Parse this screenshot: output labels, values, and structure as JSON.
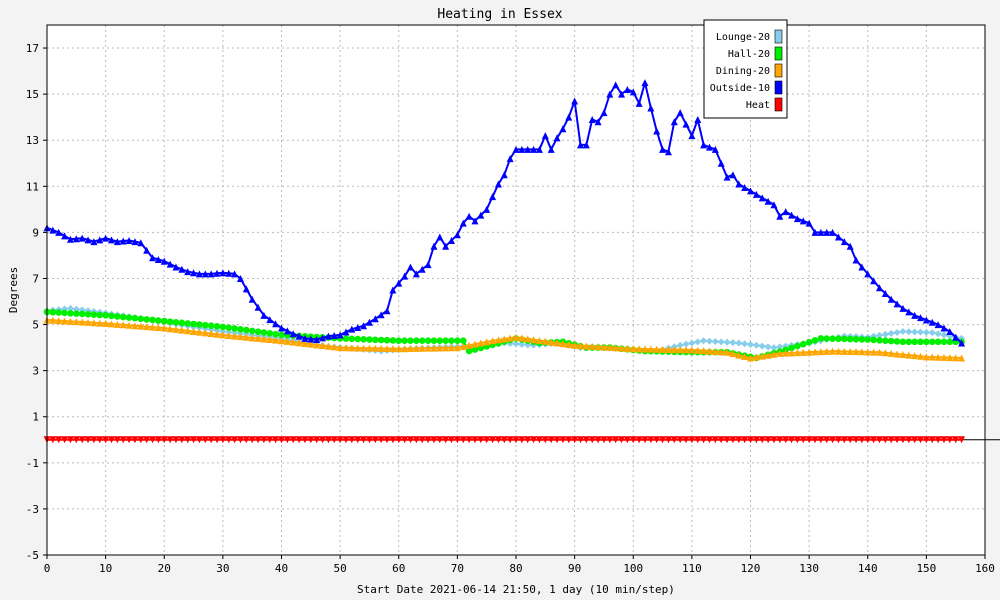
{
  "chart_data": {
    "type": "line",
    "title": "Heating in Essex",
    "xlabel": "Start Date 2021-06-14 21:50, 1 day (10 min/step)",
    "ylabel": "Degrees",
    "xlim": [
      0,
      160
    ],
    "ylim": [
      -5,
      18
    ],
    "x_ticks": [
      0,
      10,
      20,
      30,
      40,
      50,
      60,
      70,
      80,
      90,
      100,
      110,
      120,
      130,
      140,
      150,
      160
    ],
    "y_ticks": [
      -5,
      -3,
      -1,
      1,
      3,
      5,
      7,
      9,
      11,
      13,
      15,
      17
    ],
    "grid": true,
    "legend_position": "top-right",
    "series": [
      {
        "name": "Lounge-20",
        "color": "#87ceeb",
        "marker": "diamond",
        "points": [
          [
            0,
            5.6
          ],
          [
            4,
            5.7
          ],
          [
            10,
            5.5
          ],
          [
            20,
            5.1
          ],
          [
            30,
            4.7
          ],
          [
            40,
            4.4
          ],
          [
            48,
            4.05
          ],
          [
            57,
            3.85
          ],
          [
            62,
            3.95
          ],
          [
            70,
            4.05
          ],
          [
            74,
            4.05
          ],
          [
            78,
            4.2
          ],
          [
            83,
            4.1
          ],
          [
            87,
            4.2
          ],
          [
            91,
            4.0
          ],
          [
            96,
            4.0
          ],
          [
            104,
            3.85
          ],
          [
            108,
            4.1
          ],
          [
            112,
            4.3
          ],
          [
            118,
            4.2
          ],
          [
            124,
            4.0
          ],
          [
            130,
            4.2
          ],
          [
            136,
            4.5
          ],
          [
            140,
            4.45
          ],
          [
            146,
            4.7
          ],
          [
            151,
            4.65
          ],
          [
            156,
            4.4
          ]
        ]
      },
      {
        "name": "Hall-20",
        "color": "#00ee00",
        "marker": "circle",
        "points": [
          [
            0,
            5.55
          ],
          [
            10,
            5.4
          ],
          [
            20,
            5.15
          ],
          [
            30,
            4.9
          ],
          [
            40,
            4.55
          ],
          [
            50,
            4.4
          ],
          [
            60,
            4.3
          ],
          [
            71,
            4.3
          ],
          [
            72,
            3.85
          ],
          [
            75,
            4.05
          ],
          [
            80,
            4.4
          ],
          [
            84,
            4.2
          ],
          [
            88,
            4.25
          ],
          [
            92,
            4.0
          ],
          [
            96,
            4.0
          ],
          [
            102,
            3.85
          ],
          [
            110,
            3.8
          ],
          [
            116,
            3.8
          ],
          [
            121,
            3.55
          ],
          [
            126,
            3.9
          ],
          [
            132,
            4.4
          ],
          [
            140,
            4.35
          ],
          [
            146,
            4.25
          ],
          [
            156,
            4.25
          ]
        ]
      },
      {
        "name": "Dining-20",
        "color": "#ffa500",
        "marker": "triangle-up",
        "points": [
          [
            0,
            5.2
          ],
          [
            10,
            5.05
          ],
          [
            20,
            4.85
          ],
          [
            30,
            4.55
          ],
          [
            40,
            4.3
          ],
          [
            50,
            4.0
          ],
          [
            60,
            3.95
          ],
          [
            70,
            4.0
          ],
          [
            76,
            4.3
          ],
          [
            80,
            4.45
          ],
          [
            90,
            4.1
          ],
          [
            100,
            3.95
          ],
          [
            110,
            3.9
          ],
          [
            116,
            3.8
          ],
          [
            120,
            3.55
          ],
          [
            125,
            3.75
          ],
          [
            134,
            3.85
          ],
          [
            142,
            3.8
          ],
          [
            150,
            3.6
          ],
          [
            156,
            3.55
          ]
        ]
      },
      {
        "name": "Outside-10",
        "color": "#0000ff",
        "marker": "triangle-up",
        "points": [
          [
            0,
            9.2
          ],
          [
            2,
            9.0
          ],
          [
            4,
            8.7
          ],
          [
            6,
            8.75
          ],
          [
            8,
            8.6
          ],
          [
            10,
            8.75
          ],
          [
            12,
            8.6
          ],
          [
            14,
            8.65
          ],
          [
            16,
            8.55
          ],
          [
            18,
            7.9
          ],
          [
            20,
            7.75
          ],
          [
            22,
            7.5
          ],
          [
            24,
            7.3
          ],
          [
            26,
            7.2
          ],
          [
            28,
            7.2
          ],
          [
            30,
            7.25
          ],
          [
            32,
            7.2
          ],
          [
            33,
            7.0
          ],
          [
            35,
            6.1
          ],
          [
            37,
            5.4
          ],
          [
            40,
            4.85
          ],
          [
            42,
            4.6
          ],
          [
            44,
            4.4
          ],
          [
            46,
            4.35
          ],
          [
            48,
            4.5
          ],
          [
            50,
            4.55
          ],
          [
            52,
            4.8
          ],
          [
            54,
            4.95
          ],
          [
            56,
            5.25
          ],
          [
            58,
            5.6
          ],
          [
            59,
            6.5
          ],
          [
            61,
            7.1
          ],
          [
            62,
            7.5
          ],
          [
            63,
            7.2
          ],
          [
            65,
            7.6
          ],
          [
            66,
            8.4
          ],
          [
            67,
            8.8
          ],
          [
            68,
            8.4
          ],
          [
            70,
            8.9
          ],
          [
            71,
            9.4
          ],
          [
            72,
            9.7
          ],
          [
            73,
            9.5
          ],
          [
            75,
            10.0
          ],
          [
            77,
            11.1
          ],
          [
            78,
            11.5
          ],
          [
            79,
            12.2
          ],
          [
            80,
            12.6
          ],
          [
            82,
            12.6
          ],
          [
            84,
            12.6
          ],
          [
            85,
            13.2
          ],
          [
            86,
            12.6
          ],
          [
            87,
            13.1
          ],
          [
            88,
            13.5
          ],
          [
            89,
            14.0
          ],
          [
            90,
            14.7
          ],
          [
            91,
            12.8
          ],
          [
            92,
            12.8
          ],
          [
            93,
            13.9
          ],
          [
            94,
            13.8
          ],
          [
            95,
            14.2
          ],
          [
            96,
            15.0
          ],
          [
            97,
            15.4
          ],
          [
            98,
            15.0
          ],
          [
            99,
            15.2
          ],
          [
            100,
            15.1
          ],
          [
            101,
            14.6
          ],
          [
            102,
            15.5
          ],
          [
            103,
            14.4
          ],
          [
            104,
            13.4
          ],
          [
            105,
            12.6
          ],
          [
            106,
            12.5
          ],
          [
            107,
            13.8
          ],
          [
            108,
            14.2
          ],
          [
            110,
            13.2
          ],
          [
            111,
            13.9
          ],
          [
            112,
            12.8
          ],
          [
            114,
            12.6
          ],
          [
            116,
            11.4
          ],
          [
            117,
            11.5
          ],
          [
            118,
            11.1
          ],
          [
            120,
            10.8
          ],
          [
            122,
            10.5
          ],
          [
            124,
            10.2
          ],
          [
            125,
            9.7
          ],
          [
            126,
            9.9
          ],
          [
            128,
            9.6
          ],
          [
            130,
            9.4
          ],
          [
            131,
            9.0
          ],
          [
            134,
            9.0
          ],
          [
            136,
            8.6
          ],
          [
            137,
            8.4
          ],
          [
            138,
            7.8
          ],
          [
            140,
            7.2
          ],
          [
            142,
            6.6
          ],
          [
            144,
            6.1
          ],
          [
            146,
            5.7
          ],
          [
            148,
            5.4
          ],
          [
            150,
            5.2
          ],
          [
            152,
            5.0
          ],
          [
            154,
            4.7
          ],
          [
            156,
            4.2
          ]
        ]
      },
      {
        "name": "Heat",
        "color": "#ff0000",
        "marker": "triangle-down",
        "points": [
          [
            0,
            0
          ],
          [
            156,
            0
          ]
        ]
      }
    ]
  }
}
